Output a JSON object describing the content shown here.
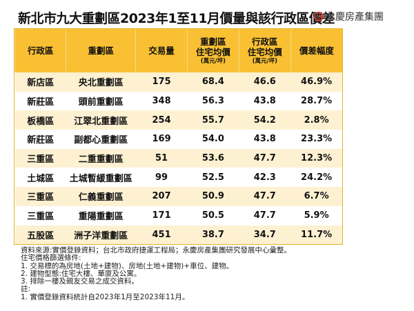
{
  "title": "新北市九大重劃區2023年1至11月價量與該行政區價差",
  "logo": {
    "text": "永慶房產集團",
    "brand_color": "#c0392b"
  },
  "table": {
    "header_color": "#f9c033",
    "columns": [
      {
        "label": "行政區"
      },
      {
        "label": "重劃區"
      },
      {
        "label": "交易量"
      },
      {
        "label": "重劃區",
        "label2": "住宅均價",
        "unit": "(萬元/坪)"
      },
      {
        "label": "行政區",
        "label2": "住宅均價",
        "unit": "(萬元/坪)"
      },
      {
        "label": "價差幅度"
      }
    ],
    "rows": [
      [
        "新店區",
        "央北重劃區",
        "175",
        "68.4",
        "46.6",
        "46.9%"
      ],
      [
        "新莊區",
        "頭前重劃區",
        "348",
        "56.3",
        "43.8",
        "28.7%"
      ],
      [
        "板橋區",
        "江翠北重劃區",
        "254",
        "55.7",
        "54.2",
        "2.8%"
      ],
      [
        "新莊區",
        "副都心重劃區",
        "169",
        "54.0",
        "43.8",
        "23.3%"
      ],
      [
        "三重區",
        "二重重劃區",
        "51",
        "53.6",
        "47.7",
        "12.3%"
      ],
      [
        "土城區",
        "土城暫緩重劃區",
        "99",
        "52.5",
        "42.3",
        "24.2%"
      ],
      [
        "三重區",
        "仁義重劃區",
        "207",
        "50.9",
        "47.7",
        "6.7%"
      ],
      [
        "三重區",
        "重陽重劃區",
        "171",
        "50.5",
        "47.7",
        "5.9%"
      ],
      [
        "五股區",
        "洲子洋重劃區",
        "451",
        "38.7",
        "34.7",
        "11.7%"
      ]
    ]
  },
  "notes": [
    "資料來源:實價登錄資料；台北市政府捷運工程局；永慶房產集團研究發展中心彙整。",
    "住宅價格篩選條件:",
    "1. 交易標的為房地(土地+建物)、房地(土地+建物)+車位、建物。",
    "2. 建物型態:住宅大樓、華廈及公寓。",
    "3. 排除一樓及親友交易之成交資料。",
    "註:",
    "1. 實價登錄資料統計自2023年1月至2023年11月。"
  ]
}
